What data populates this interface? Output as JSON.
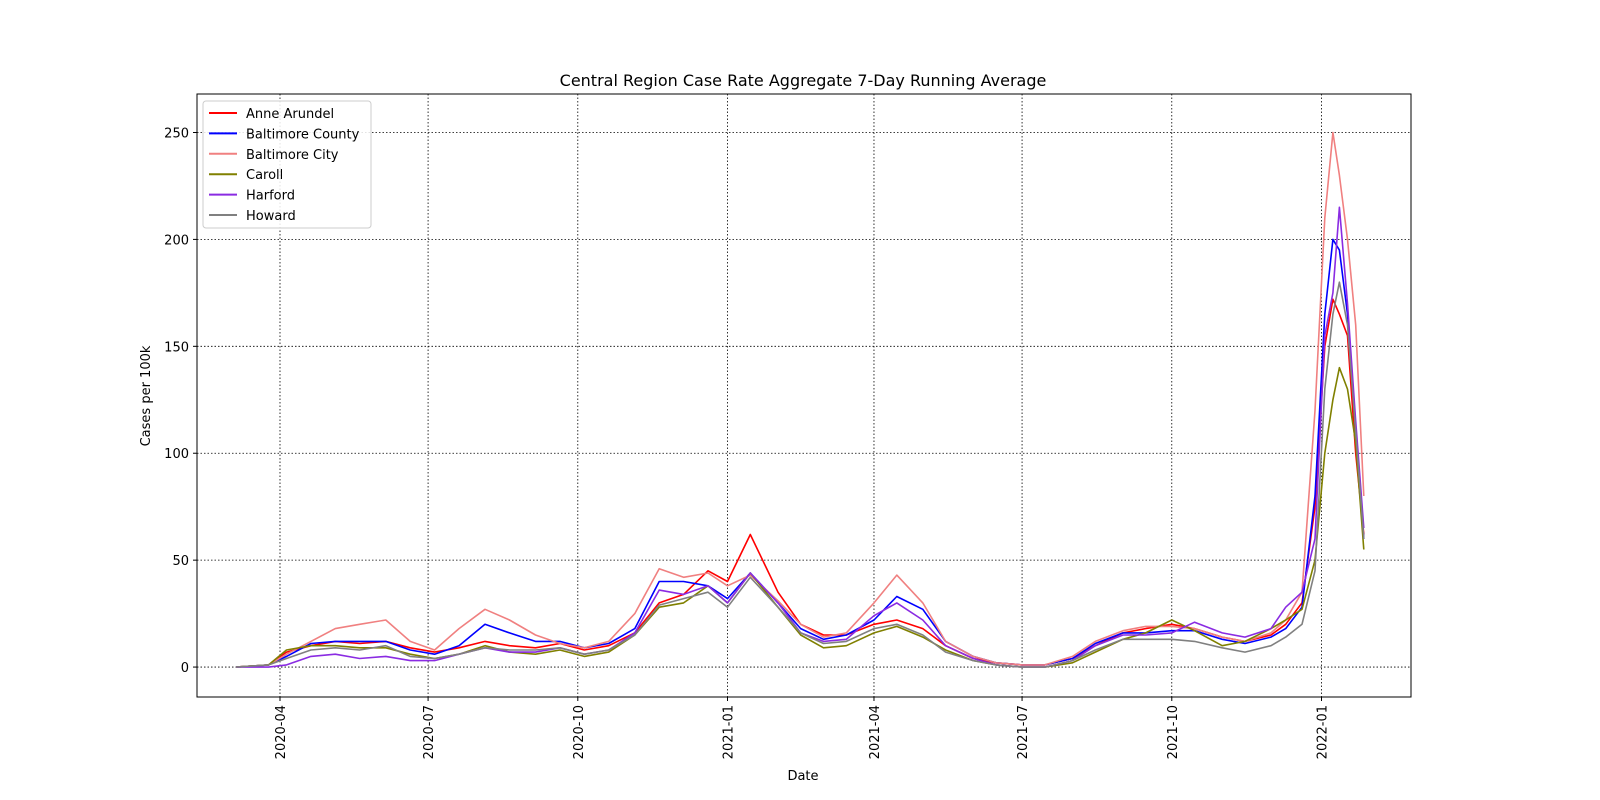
{
  "chart_data": {
    "type": "line",
    "title": "Central Region Case Rate Aggregate 7-Day Running Average",
    "xlabel": "Date",
    "ylabel": "Cases per 100k",
    "xlim": [
      "2020-02-10",
      "2022-02-25"
    ],
    "ylim": [
      -14,
      268
    ],
    "x_ticks": [
      "2020-04",
      "2020-07",
      "2020-10",
      "2021-01",
      "2021-04",
      "2021-07",
      "2021-10",
      "2022-01"
    ],
    "y_ticks": [
      0,
      50,
      100,
      150,
      200,
      250
    ],
    "grid": true,
    "legend": "top-left",
    "x_dates": [
      "2020-03-05",
      "2020-03-25",
      "2020-04-05",
      "2020-04-20",
      "2020-05-05",
      "2020-05-20",
      "2020-06-05",
      "2020-06-20",
      "2020-07-05",
      "2020-07-20",
      "2020-08-05",
      "2020-08-20",
      "2020-09-05",
      "2020-09-20",
      "2020-10-05",
      "2020-10-20",
      "2020-11-05",
      "2020-11-20",
      "2020-12-05",
      "2020-12-20",
      "2021-01-01",
      "2021-01-15",
      "2021-02-01",
      "2021-02-15",
      "2021-03-01",
      "2021-03-15",
      "2021-04-01",
      "2021-04-15",
      "2021-05-01",
      "2021-05-15",
      "2021-06-01",
      "2021-06-15",
      "2021-07-01",
      "2021-07-15",
      "2021-08-01",
      "2021-08-15",
      "2021-09-01",
      "2021-09-15",
      "2021-10-01",
      "2021-10-15",
      "2021-11-01",
      "2021-11-15",
      "2021-12-01",
      "2021-12-10",
      "2021-12-20",
      "2021-12-28",
      "2022-01-03",
      "2022-01-08",
      "2022-01-12",
      "2022-01-17",
      "2022-01-22",
      "2022-01-27"
    ],
    "series": [
      {
        "name": "Anne Arundel",
        "color": "#ff0000",
        "values": [
          0,
          1,
          7,
          10,
          12,
          11,
          12,
          9,
          7,
          9,
          12,
          10,
          9,
          11,
          8,
          10,
          16,
          30,
          34,
          45,
          40,
          62,
          35,
          20,
          15,
          15,
          20,
          22,
          18,
          10,
          4,
          2,
          1,
          1,
          4,
          10,
          16,
          18,
          20,
          18,
          14,
          12,
          15,
          20,
          30,
          75,
          150,
          172,
          165,
          155,
          100,
          62
        ]
      },
      {
        "name": "Baltimore County",
        "color": "#0000ff",
        "values": [
          0,
          1,
          5,
          11,
          12,
          12,
          12,
          8,
          6,
          10,
          20,
          16,
          12,
          12,
          9,
          11,
          18,
          40,
          40,
          38,
          32,
          44,
          30,
          18,
          13,
          15,
          22,
          33,
          27,
          12,
          5,
          2,
          1,
          1,
          4,
          11,
          16,
          16,
          17,
          17,
          13,
          11,
          14,
          18,
          28,
          80,
          165,
          200,
          195,
          165,
          110,
          60
        ]
      },
      {
        "name": "Baltimore City",
        "color": "#f08080",
        "values": [
          0,
          1,
          6,
          12,
          18,
          20,
          22,
          12,
          8,
          18,
          27,
          22,
          15,
          11,
          9,
          12,
          25,
          46,
          42,
          44,
          38,
          43,
          31,
          20,
          14,
          16,
          30,
          43,
          30,
          12,
          5,
          2,
          1,
          1,
          5,
          12,
          17,
          19,
          19,
          18,
          14,
          12,
          16,
          22,
          35,
          120,
          210,
          250,
          230,
          200,
          160,
          80
        ]
      },
      {
        "name": "Caroll",
        "color": "#808000",
        "values": [
          0,
          1,
          8,
          10,
          10,
          9,
          9,
          6,
          4,
          6,
          10,
          7,
          6,
          8,
          5,
          7,
          15,
          28,
          30,
          38,
          30,
          44,
          28,
          15,
          9,
          10,
          16,
          19,
          14,
          8,
          3,
          1,
          0,
          0,
          2,
          7,
          13,
          16,
          22,
          17,
          10,
          12,
          18,
          22,
          27,
          50,
          100,
          125,
          140,
          130,
          105,
          55
        ]
      },
      {
        "name": "Harford",
        "color": "#8a2be2",
        "values": [
          0,
          0,
          1,
          5,
          6,
          4,
          5,
          3,
          3,
          6,
          9,
          7,
          7,
          9,
          6,
          8,
          16,
          36,
          34,
          38,
          30,
          44,
          30,
          16,
          12,
          13,
          24,
          30,
          22,
          10,
          4,
          1,
          0,
          0,
          3,
          10,
          15,
          15,
          16,
          21,
          16,
          14,
          18,
          28,
          35,
          60,
          155,
          175,
          215,
          170,
          115,
          65
        ]
      },
      {
        "name": "Howard",
        "color": "#808080",
        "values": [
          0,
          1,
          4,
          8,
          9,
          8,
          10,
          5,
          4,
          6,
          9,
          8,
          8,
          9,
          6,
          8,
          15,
          29,
          32,
          35,
          28,
          42,
          28,
          16,
          11,
          12,
          18,
          20,
          15,
          7,
          3,
          1,
          0,
          0,
          3,
          8,
          13,
          13,
          13,
          12,
          9,
          7,
          10,
          14,
          20,
          45,
          130,
          165,
          180,
          160,
          110,
          60
        ]
      }
    ]
  }
}
